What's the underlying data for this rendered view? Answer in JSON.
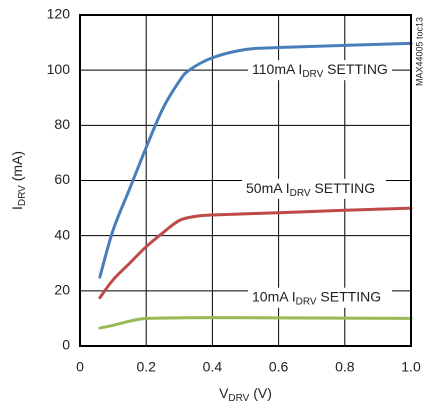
{
  "chart_data": {
    "type": "line",
    "xlabel": [
      "V",
      "DRV",
      " (V)"
    ],
    "ylabel": [
      "I",
      "DRV",
      " (mA)"
    ],
    "side_note": "MAX44005 toc13",
    "annotations": [
      [
        "110mA I",
        "DRV",
        " SETTING"
      ],
      [
        "50mA I",
        "DRV",
        " SETTING"
      ],
      [
        "10mA I",
        "DRV",
        " SETTING"
      ]
    ],
    "xlim": [
      0,
      1
    ],
    "ylim": [
      0,
      120
    ],
    "xticks": [
      0,
      0.2,
      0.4,
      0.6,
      0.8,
      {
        "value": 1,
        "label": "1.0"
      }
    ],
    "yticks": [
      0,
      20,
      40,
      60,
      80,
      100,
      120
    ],
    "grid": true,
    "series": [
      {
        "color": "#4a7ebb",
        "x": [
          0.06,
          0.1,
          0.15,
          0.2,
          0.25,
          0.3,
          0.33,
          0.4,
          0.5,
          0.6,
          0.8,
          1.0
        ],
        "values": [
          25,
          42,
          57,
          72,
          86,
          96,
          100,
          104.5,
          107.5,
          108.2,
          109,
          109.7
        ]
      },
      {
        "color": "#be4b48",
        "x": [
          0.06,
          0.1,
          0.15,
          0.2,
          0.25,
          0.3,
          0.35,
          0.4,
          0.6,
          0.8,
          1.0
        ],
        "values": [
          17.5,
          24,
          30,
          36,
          41,
          45.5,
          47,
          47.5,
          48.3,
          49.2,
          50
        ]
      },
      {
        "color": "#98b954",
        "x": [
          0.06,
          0.1,
          0.15,
          0.2,
          0.3,
          0.4,
          0.6,
          0.8,
          1.0
        ],
        "values": [
          6.5,
          7.5,
          9,
          10,
          10.2,
          10.3,
          10.2,
          10.1,
          10
        ]
      }
    ]
  }
}
